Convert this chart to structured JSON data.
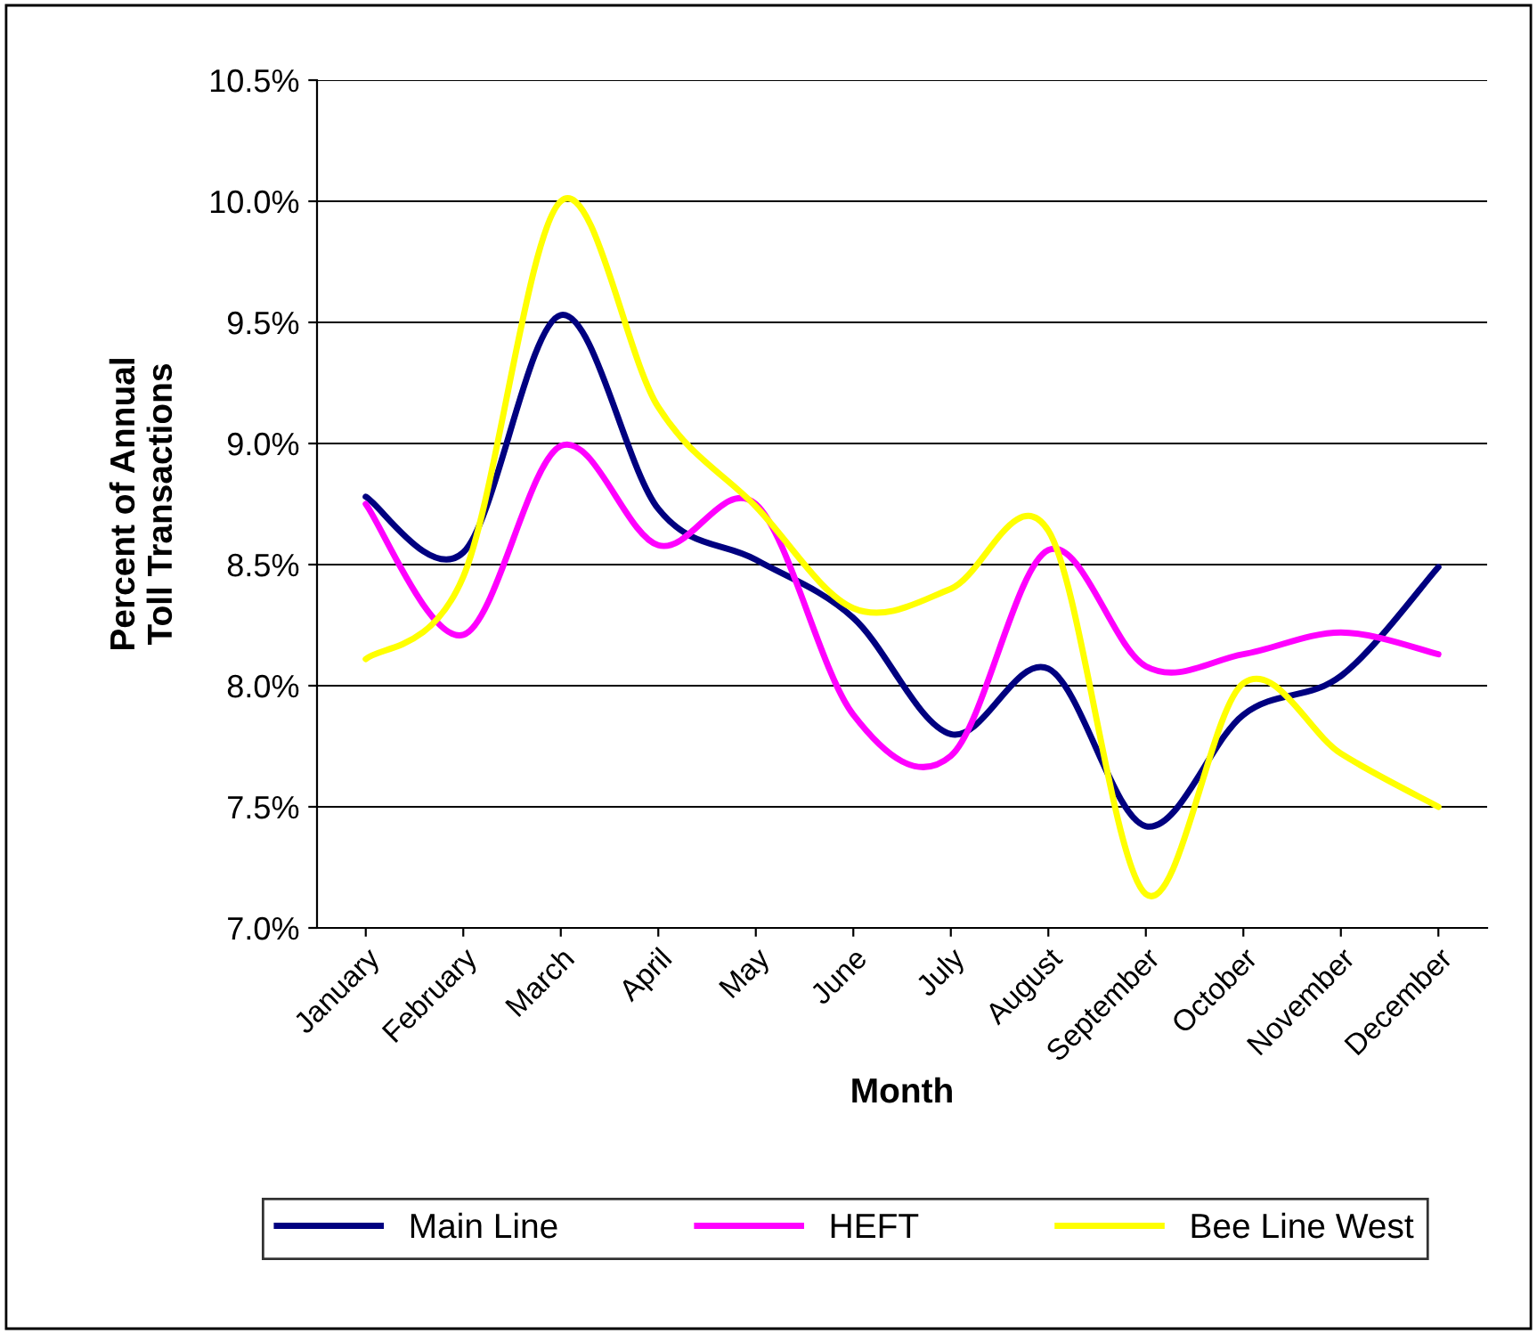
{
  "chart_data": {
    "type": "line",
    "xlabel": "Month",
    "ylabel": "Percent of Annual\nToll Transactions",
    "categories": [
      "January",
      "February",
      "March",
      "April",
      "May",
      "June",
      "July",
      "August",
      "September",
      "October",
      "November",
      "December"
    ],
    "series": [
      {
        "name": "Main Line",
        "color": "#000080",
        "values": [
          8.78,
          8.55,
          9.53,
          8.73,
          8.52,
          8.28,
          7.8,
          8.07,
          7.42,
          7.88,
          8.04,
          8.49
        ]
      },
      {
        "name": "HEFT",
        "color": "#ff00ff",
        "values": [
          8.75,
          8.21,
          8.99,
          8.58,
          8.75,
          7.88,
          7.71,
          8.56,
          8.08,
          8.13,
          8.22,
          8.13
        ]
      },
      {
        "name": "Bee Line West",
        "color": "#ffff00",
        "values": [
          8.11,
          8.45,
          10.0,
          9.15,
          8.74,
          8.32,
          8.4,
          8.64,
          7.14,
          8.01,
          7.72,
          7.5
        ]
      }
    ],
    "ylim": [
      7.0,
      10.5
    ],
    "yticks": [
      {
        "value": 7.0,
        "label": "7.0%"
      },
      {
        "value": 7.5,
        "label": "7.5%"
      },
      {
        "value": 8.0,
        "label": "8.0%"
      },
      {
        "value": 8.5,
        "label": "8.5%"
      },
      {
        "value": 9.0,
        "label": "9.0%"
      },
      {
        "value": 9.5,
        "label": "9.5%"
      },
      {
        "value": 10.0,
        "label": "10.0%"
      },
      {
        "value": 10.5,
        "label": "10.5%"
      }
    ],
    "grid": "y",
    "legend": "bottom",
    "marker": "none",
    "line_style": "solid"
  }
}
